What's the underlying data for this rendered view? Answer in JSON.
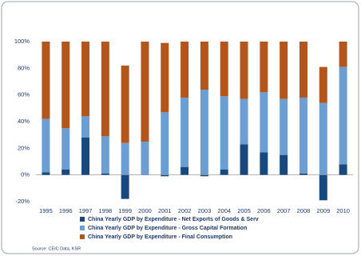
{
  "chart_data": {
    "type": "stacked-bar",
    "categories": [
      "1995",
      "1996",
      "1997",
      "1998",
      "1999",
      "2000",
      "2001",
      "2002",
      "2003",
      "2004",
      "2005",
      "2006",
      "2007",
      "2008",
      "2009",
      "2010"
    ],
    "series": [
      {
        "name": "China Yearly GDP by Expenditure - Net Exports of Goods & Serv",
        "color": "#17497f",
        "values": [
          2,
          4,
          28,
          1,
          -18,
          0,
          -1,
          6,
          -1,
          4,
          23,
          17,
          15,
          1,
          -19,
          8
        ]
      },
      {
        "name": "China Yearly GDP by Expenditure - Gross Capital Formation",
        "color": "#6b9fd4",
        "values": [
          40,
          31,
          16,
          28,
          24,
          25,
          47,
          52,
          64,
          55,
          34,
          45,
          42,
          57,
          54,
          73
        ]
      },
      {
        "name": "China Yearly GDP by Expenditure - Final Consumption",
        "color": "#b4561c",
        "values": [
          58,
          65,
          56,
          71,
          58,
          75,
          52,
          42,
          36,
          41,
          43,
          38,
          43,
          42,
          27,
          19
        ]
      }
    ],
    "ylim": [
      -20,
      100
    ],
    "yticks": [
      {
        "value": -20,
        "label": "-20%"
      },
      {
        "value": 0,
        "label": "0%"
      },
      {
        "value": 20,
        "label": "20%"
      },
      {
        "value": 40,
        "label": "40%"
      },
      {
        "value": 60,
        "label": "60%"
      },
      {
        "value": 80,
        "label": "80%"
      },
      {
        "value": 100,
        "label": "100%"
      }
    ],
    "source": "Source: CEIC Data, KSR"
  }
}
